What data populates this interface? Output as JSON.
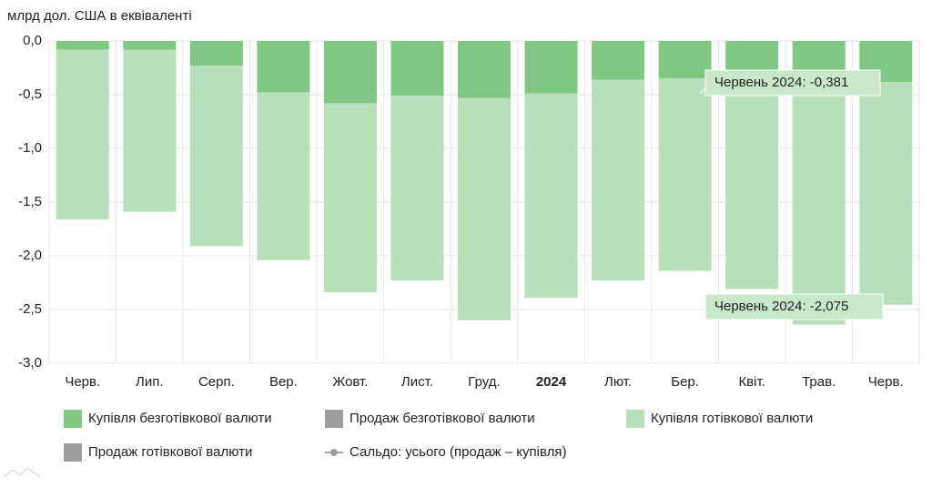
{
  "chart_data": {
    "type": "bar",
    "stacked": true,
    "y_label": "млрд дол. США в еквіваленті",
    "categories": [
      "Черв.",
      "Лип.",
      "Серп.",
      "Вер.",
      "Жовт.",
      "Лист.",
      "Груд.",
      "2024",
      "Лют.",
      "Бер.",
      "Квіт.",
      "Трав.",
      "Черв."
    ],
    "series": [
      {
        "name": "Купівля безготівкової валюти",
        "color": "#81c784",
        "values": [
          -0.08,
          -0.08,
          -0.23,
          -0.48,
          -0.58,
          -0.51,
          -0.53,
          -0.49,
          -0.36,
          -0.35,
          -0.36,
          -0.38,
          -0.381
        ]
      },
      {
        "name": "Купівля готівкової валюти",
        "color": "#b7dfb9",
        "values": [
          -1.58,
          -1.51,
          -1.68,
          -1.56,
          -1.76,
          -1.72,
          -2.07,
          -1.9,
          -1.87,
          -1.79,
          -1.95,
          -2.26,
          -2.075
        ]
      }
    ],
    "hidden_series": [
      {
        "name": "Продаж безготівкової валюти",
        "color": "#9e9e9e"
      },
      {
        "name": "Продаж готівкової валюти",
        "color": "#9e9e9e"
      },
      {
        "name": "Сальдо: усього (продаж – купівля)",
        "color": "#9e9e9e"
      }
    ],
    "tooltips": [
      "Червень 2024: -0,381",
      "Червень 2024: -2,075"
    ],
    "ylim": [
      -3,
      0
    ],
    "yticks": [
      {
        "value": 0,
        "label": "0,0"
      },
      {
        "value": -0.5,
        "label": "-0,5"
      },
      {
        "value": -1,
        "label": "-1,0"
      },
      {
        "value": -1.5,
        "label": "-1,5"
      },
      {
        "value": -2,
        "label": "-2,0"
      },
      {
        "value": -2.5,
        "label": "-2,5"
      },
      {
        "value": -3,
        "label": "-3,0"
      }
    ],
    "grid": true
  }
}
